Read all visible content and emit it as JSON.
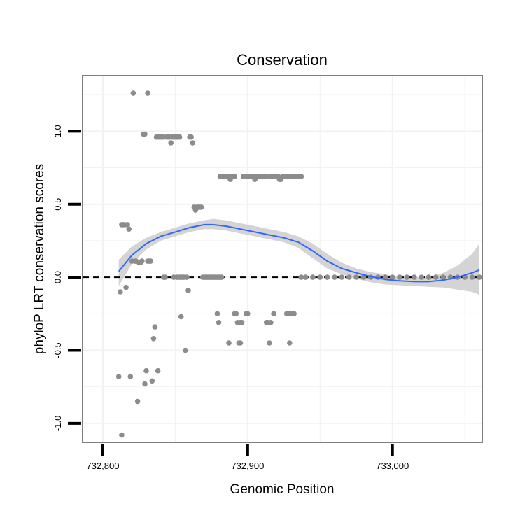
{
  "chart_data": {
    "type": "scatter",
    "title": "Conservation",
    "xlabel": "Genomic Position",
    "ylabel": "phyloP LRT conservation scores",
    "xlim": [
      732786,
      733062
    ],
    "ylim": [
      -1.13,
      1.38
    ],
    "x_ticks": [
      732800,
      732900,
      733000
    ],
    "x_tick_labels": [
      "732,800",
      "732,900",
      "733,000"
    ],
    "y_ticks": [
      -1.0,
      -0.5,
      0.0,
      0.5,
      1.0
    ],
    "y_tick_labels": [
      "-1.0",
      "-0.5",
      "0.0",
      "0.5",
      "1.0"
    ],
    "grid": true,
    "reference_line": {
      "y": 0,
      "style": "dashed",
      "color": "#000000"
    },
    "colors": {
      "points": "#8c8c8c",
      "smooth": "#3366ff",
      "band": "#cccccc",
      "panel_border": "#7f7f7f",
      "grid": "#f2f2f2"
    },
    "points": [
      [
        732811,
        -0.68
      ],
      [
        732812,
        -0.1
      ],
      [
        732813,
        -1.08
      ],
      [
        732813,
        0.36
      ],
      [
        732814,
        0.36
      ],
      [
        732815,
        0.36
      ],
      [
        732816,
        -0.07
      ],
      [
        732817,
        0.36
      ],
      [
        732818,
        0.33
      ],
      [
        732819,
        -0.68
      ],
      [
        732820,
        0.11
      ],
      [
        732821,
        1.26
      ],
      [
        732822,
        0.11
      ],
      [
        732823,
        0.11
      ],
      [
        732824,
        -0.85
      ],
      [
        732825,
        0.1
      ],
      [
        732826,
        0.1
      ],
      [
        732827,
        0.11
      ],
      [
        732828,
        0.98
      ],
      [
        732829,
        0.98
      ],
      [
        732829,
        -0.73
      ],
      [
        732830,
        -0.64
      ],
      [
        732831,
        1.26
      ],
      [
        732831,
        0.11
      ],
      [
        732832,
        0.11
      ],
      [
        732833,
        0.11
      ],
      [
        732834,
        -0.71
      ],
      [
        732835,
        -0.42
      ],
      [
        732836,
        -0.34
      ],
      [
        732837,
        0.96
      ],
      [
        732838,
        0.96
      ],
      [
        732838,
        -0.64
      ],
      [
        732839,
        0.96
      ],
      [
        732840,
        0.96
      ],
      [
        732841,
        0.96
      ],
      [
        732842,
        0.96
      ],
      [
        732842,
        0.0
      ],
      [
        732843,
        0.0
      ],
      [
        732844,
        0.96
      ],
      [
        732845,
        0.96
      ],
      [
        732846,
        0.96
      ],
      [
        732847,
        0.92
      ],
      [
        732848,
        0.96
      ],
      [
        732849,
        0.96
      ],
      [
        732849,
        0.0
      ],
      [
        732850,
        0.96
      ],
      [
        732851,
        0.96
      ],
      [
        732851,
        0.0
      ],
      [
        732852,
        0.96
      ],
      [
        732853,
        0.96
      ],
      [
        732853,
        0.0
      ],
      [
        732854,
        0.0
      ],
      [
        732855,
        0.0
      ],
      [
        732854,
        -0.27
      ],
      [
        732856,
        0.0
      ],
      [
        732857,
        -0.5
      ],
      [
        732858,
        0.0
      ],
      [
        732859,
        -0.09
      ],
      [
        732860,
        0.96
      ],
      [
        732861,
        0.96
      ],
      [
        732862,
        0.92
      ],
      [
        732863,
        0.48
      ],
      [
        732864,
        0.46
      ],
      [
        732865,
        0.48
      ],
      [
        732866,
        0.48
      ],
      [
        732867,
        0.48
      ],
      [
        732868,
        0.48
      ],
      [
        732869,
        0.0
      ],
      [
        732870,
        0.0
      ],
      [
        732871,
        0.0
      ],
      [
        732872,
        0.0
      ],
      [
        732873,
        0.0
      ],
      [
        732874,
        0.0
      ],
      [
        732875,
        0.0
      ],
      [
        732876,
        0.0
      ],
      [
        732877,
        0.0
      ],
      [
        732878,
        0.0
      ],
      [
        732879,
        0.0
      ],
      [
        732880,
        0.0
      ],
      [
        732881,
        0.0
      ],
      [
        732882,
        0.0
      ],
      [
        732879,
        -0.25
      ],
      [
        732880,
        -0.31
      ],
      [
        732881,
        0.69
      ],
      [
        732882,
        0.69
      ],
      [
        732883,
        0.69
      ],
      [
        732884,
        0.69
      ],
      [
        732885,
        0.69
      ],
      [
        732886,
        0.69
      ],
      [
        732887,
        0.69
      ],
      [
        732887,
        -0.45
      ],
      [
        732888,
        0.67
      ],
      [
        732889,
        0.69
      ],
      [
        732890,
        0.69
      ],
      [
        732891,
        0.69
      ],
      [
        732891,
        -0.25
      ],
      [
        732892,
        -0.25
      ],
      [
        732893,
        -0.31
      ],
      [
        732894,
        -0.45
      ],
      [
        732895,
        -0.45
      ],
      [
        732895,
        -0.31
      ],
      [
        732896,
        -0.31
      ],
      [
        732897,
        0.69
      ],
      [
        732898,
        0.69
      ],
      [
        732899,
        0.69
      ],
      [
        732899,
        -0.25
      ],
      [
        732900,
        0.69
      ],
      [
        732900,
        -0.25
      ],
      [
        732901,
        0.69
      ],
      [
        732902,
        0.69
      ],
      [
        732903,
        0.69
      ],
      [
        732904,
        0.69
      ],
      [
        732905,
        0.67
      ],
      [
        732906,
        0.69
      ],
      [
        732907,
        0.69
      ],
      [
        732908,
        0.69
      ],
      [
        732909,
        0.69
      ],
      [
        732910,
        0.69
      ],
      [
        732911,
        0.69
      ],
      [
        732912,
        0.69
      ],
      [
        732913,
        -0.31
      ],
      [
        732914,
        -0.31
      ],
      [
        732915,
        0.69
      ],
      [
        732915,
        -0.45
      ],
      [
        732916,
        0.69
      ],
      [
        732916,
        -0.31
      ],
      [
        732917,
        0.69
      ],
      [
        732918,
        0.69
      ],
      [
        732918,
        -0.25
      ],
      [
        732919,
        0.69
      ],
      [
        732920,
        0.69
      ],
      [
        732921,
        0.69
      ],
      [
        732922,
        0.67
      ],
      [
        732923,
        0.67
      ],
      [
        732924,
        0.69
      ],
      [
        732925,
        0.69
      ],
      [
        732926,
        0.69
      ],
      [
        732927,
        0.69
      ],
      [
        732927,
        -0.25
      ],
      [
        732928,
        0.69
      ],
      [
        732928,
        -0.25
      ],
      [
        732929,
        0.69
      ],
      [
        732929,
        -0.45
      ],
      [
        732930,
        0.69
      ],
      [
        732930,
        -0.25
      ],
      [
        732931,
        0.69
      ],
      [
        732932,
        0.69
      ],
      [
        732932,
        -0.25
      ],
      [
        732933,
        0.69
      ],
      [
        732934,
        0.69
      ],
      [
        732935,
        0.69
      ],
      [
        732936,
        0.69
      ],
      [
        732937,
        0.69
      ],
      [
        732937,
        0.0
      ],
      [
        732940,
        0.0
      ],
      [
        732945,
        0.0
      ],
      [
        732950,
        0.0
      ],
      [
        732955,
        0.0
      ],
      [
        732960,
        0.0
      ],
      [
        732965,
        0.0
      ],
      [
        732970,
        0.0
      ],
      [
        732975,
        0.0
      ],
      [
        732980,
        0.0
      ],
      [
        732985,
        0.0
      ],
      [
        732990,
        0.0
      ],
      [
        732995,
        0.0
      ],
      [
        733000,
        0.0
      ],
      [
        733005,
        0.0
      ],
      [
        733010,
        0.0
      ],
      [
        733015,
        0.0
      ],
      [
        733020,
        0.0
      ],
      [
        733025,
        0.0
      ],
      [
        733030,
        0.0
      ],
      [
        733035,
        0.0
      ],
      [
        733040,
        0.0
      ],
      [
        733045,
        0.0
      ],
      [
        733050,
        0.0
      ],
      [
        733055,
        0.0
      ],
      [
        733060,
        0.0
      ]
    ],
    "smooth": {
      "x": [
        732811,
        732820,
        732830,
        732840,
        732850,
        732860,
        732870,
        732876,
        732885,
        732895,
        732905,
        732915,
        732925,
        732935,
        732945,
        732955,
        732965,
        732975,
        732985,
        732995,
        733005,
        733015,
        733025,
        733035,
        733045,
        733055,
        733060
      ],
      "y": [
        0.04,
        0.15,
        0.23,
        0.28,
        0.31,
        0.34,
        0.36,
        0.36,
        0.35,
        0.33,
        0.31,
        0.29,
        0.27,
        0.24,
        0.18,
        0.11,
        0.06,
        0.03,
        0.005,
        -0.015,
        -0.025,
        -0.03,
        -0.03,
        -0.02,
        0.0,
        0.03,
        0.05
      ],
      "lower": [
        -0.06,
        0.09,
        0.19,
        0.25,
        0.28,
        0.31,
        0.33,
        0.33,
        0.32,
        0.3,
        0.28,
        0.26,
        0.24,
        0.2,
        0.13,
        0.06,
        0.02,
        -0.01,
        -0.035,
        -0.05,
        -0.055,
        -0.06,
        -0.065,
        -0.07,
        -0.085,
        -0.1,
        -0.12
      ],
      "upper": [
        0.12,
        0.21,
        0.27,
        0.31,
        0.34,
        0.37,
        0.39,
        0.4,
        0.39,
        0.37,
        0.35,
        0.33,
        0.31,
        0.28,
        0.23,
        0.16,
        0.1,
        0.06,
        0.035,
        0.02,
        0.005,
        0.0,
        0.0,
        0.03,
        0.08,
        0.16,
        0.23
      ]
    }
  }
}
